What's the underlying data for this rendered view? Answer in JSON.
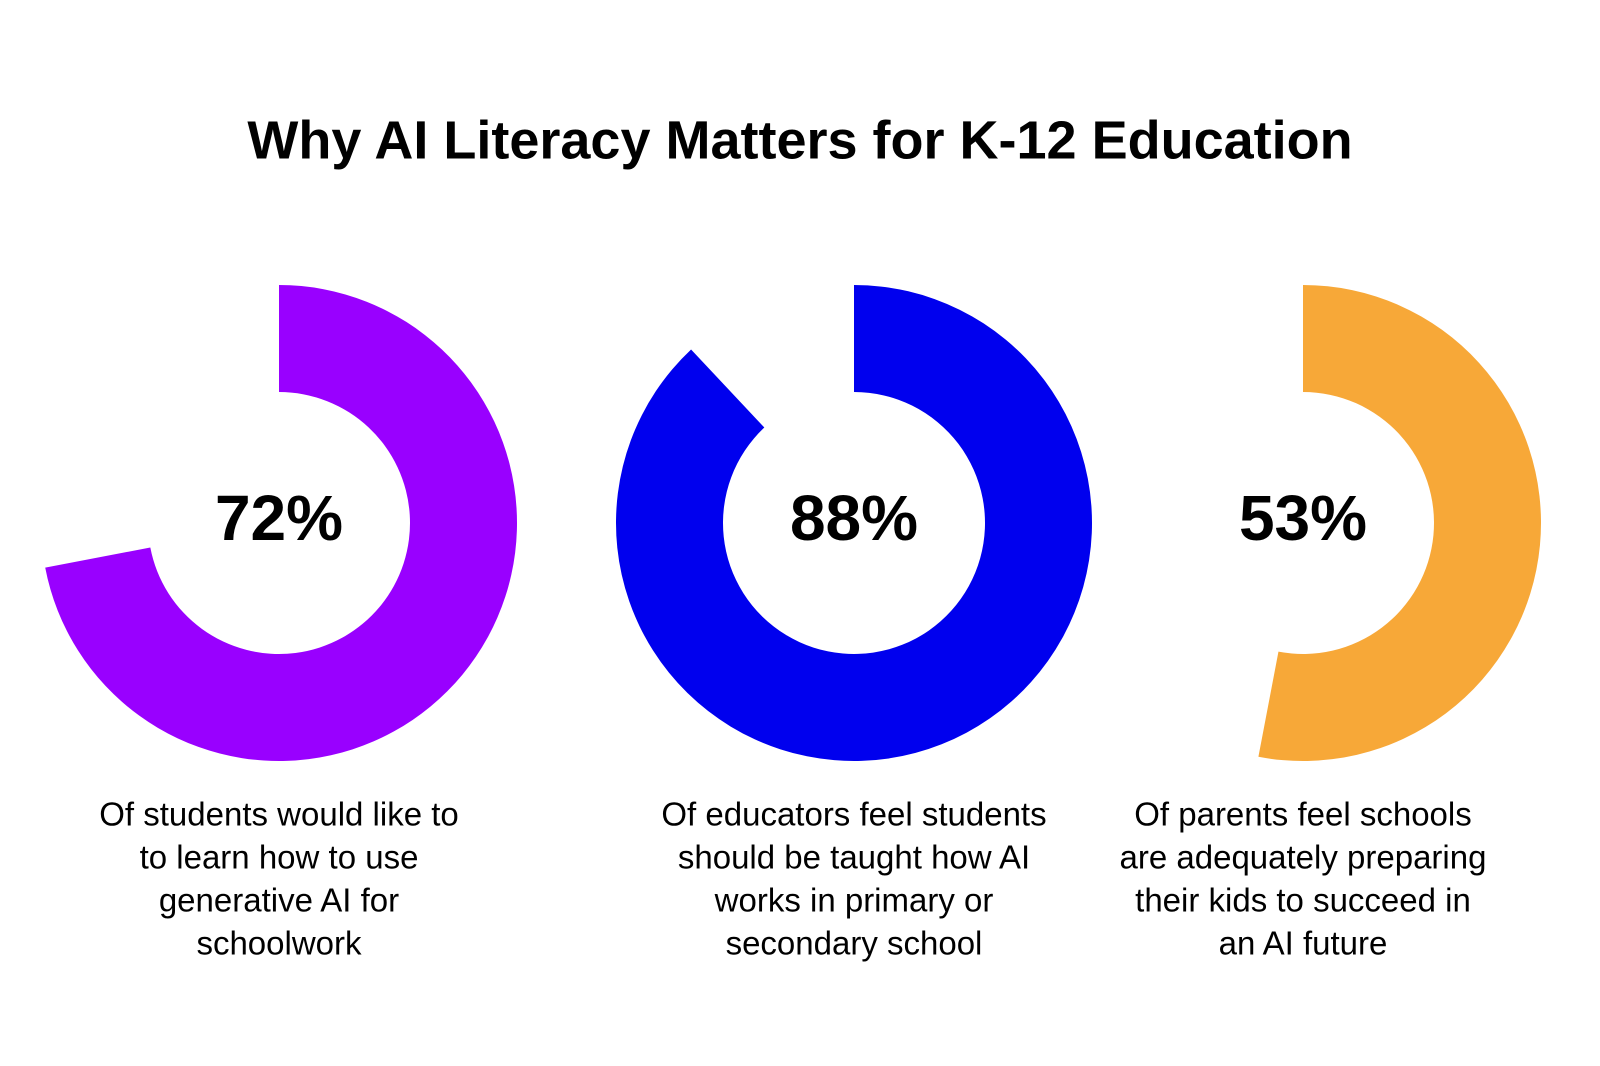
{
  "title": "Why AI Literacy Matters for K-12 Education",
  "chart_data": [
    {
      "type": "donut",
      "values": [
        72
      ],
      "value_labels": [
        "72%"
      ],
      "color": "#9900ff",
      "caption": [
        "Of students would like to",
        "to learn how to use",
        "generative AI for",
        "schoolwork"
      ]
    },
    {
      "type": "donut",
      "values": [
        88
      ],
      "value_labels": [
        "88%"
      ],
      "color": "#0000ee",
      "caption": [
        "Of educators feel students",
        "should be taught how AI",
        "works in primary or",
        "secondary school"
      ]
    },
    {
      "type": "donut",
      "values": [
        53
      ],
      "value_labels": [
        "53%"
      ],
      "color": "#f7a838",
      "caption": [
        "Of parents feel schools",
        "are adequately preparing",
        "their kids to succeed in",
        "an AI future"
      ]
    }
  ]
}
